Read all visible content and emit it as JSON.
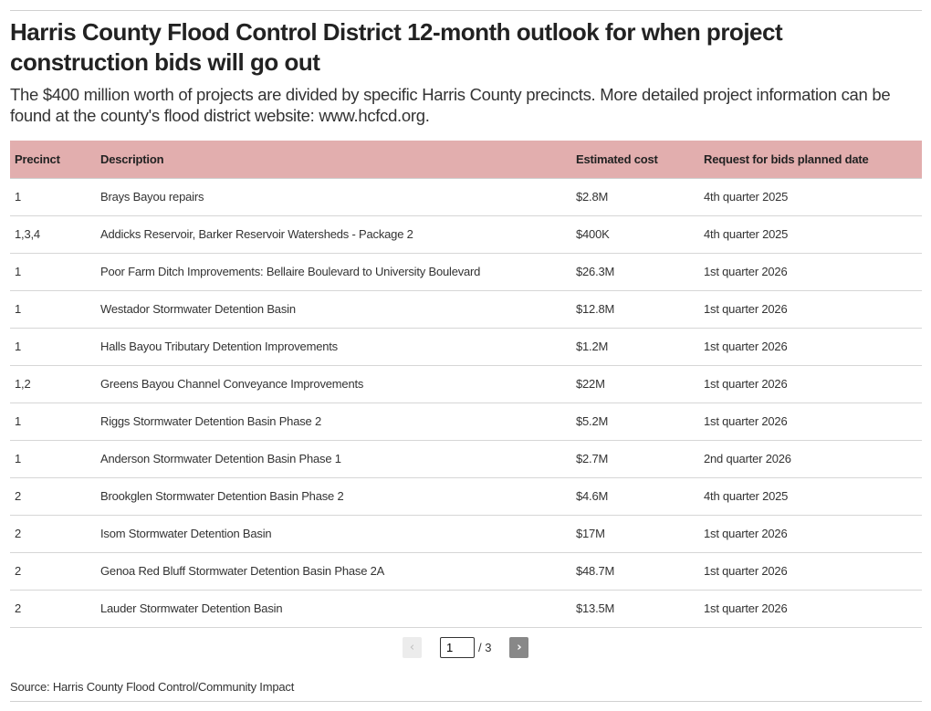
{
  "title": "Harris County Flood Control District 12-month outlook for when project construction bids will go out",
  "subtitle": "The $400 million worth of projects are divided by specific Harris County precincts. More detailed project information can be found at the county's flood district website: www.hcfcd.org.",
  "header_color": "#e2aeae",
  "chart_data": {
    "type": "table",
    "columns": [
      "Precinct",
      "Description",
      "Estimated cost",
      "Request for bids planned date"
    ],
    "rows": [
      [
        "1",
        "Brays Bayou repairs",
        "$2.8M",
        "4th quarter 2025"
      ],
      [
        "1,3,4",
        "Addicks Reservoir, Barker Reservoir Watersheds - Package 2",
        "$400K",
        "4th quarter 2025"
      ],
      [
        "1",
        "Poor Farm Ditch Improvements: Bellaire Boulevard to University Boulevard",
        "$26.3M",
        "1st quarter 2026"
      ],
      [
        "1",
        "Westador Stormwater Detention Basin",
        "$12.8M",
        "1st quarter 2026"
      ],
      [
        "1",
        "Halls Bayou Tributary Detention Improvements",
        "$1.2M",
        "1st quarter 2026"
      ],
      [
        "1,2",
        "Greens Bayou Channel Conveyance Improvements",
        "$22M",
        "1st quarter 2026"
      ],
      [
        "1",
        "Riggs Stormwater Detention Basin Phase 2",
        "$5.2M",
        "1st quarter 2026"
      ],
      [
        "1",
        "Anderson Stormwater Detention Basin Phase 1",
        "$2.7M",
        "2nd quarter 2026"
      ],
      [
        "2",
        "Brookglen Stormwater Detention Basin Phase 2",
        "$4.6M",
        "4th quarter 2025"
      ],
      [
        "2",
        "Isom Stormwater Detention Basin",
        "$17M",
        "1st quarter 2026"
      ],
      [
        "2",
        "Genoa Red Bluff Stormwater Detention Basin Phase 2A",
        "$48.7M",
        "1st quarter 2026"
      ],
      [
        "2",
        "Lauder Stormwater Detention Basin",
        "$13.5M",
        "1st quarter 2026"
      ]
    ]
  },
  "pagination": {
    "prev_label": "‹",
    "next_label": "›",
    "current_page": "1",
    "total_label": "/ 3"
  },
  "source": "Source: Harris County Flood Control/Community Impact"
}
